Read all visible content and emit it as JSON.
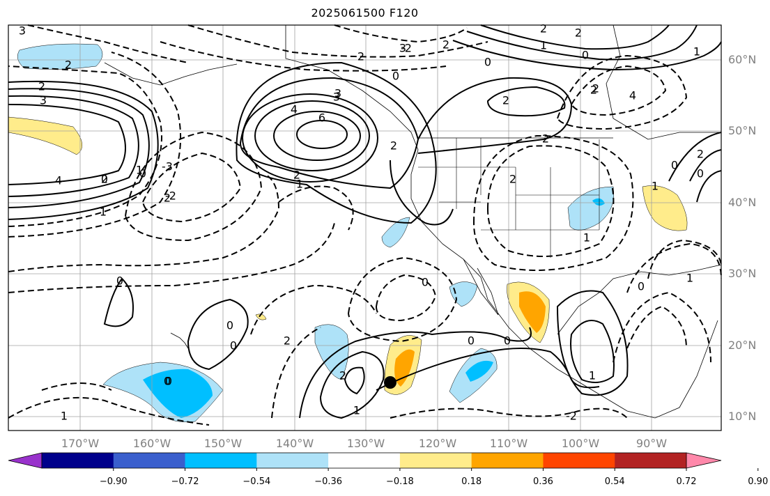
{
  "title": "2025061500 F120",
  "lat_labels": [
    {
      "label": "60°N"
    },
    {
      "label": "50°N"
    },
    {
      "label": "40°N"
    },
    {
      "label": "30°N"
    },
    {
      "label": "20°N"
    },
    {
      "label": "10°N"
    }
  ],
  "lon_labels": [
    {
      "label": "170°W"
    },
    {
      "label": "160°W"
    },
    {
      "label": "150°W"
    },
    {
      "label": "140°W"
    },
    {
      "label": "130°W"
    },
    {
      "label": "120°W"
    },
    {
      "label": "110°W"
    },
    {
      "label": "100°W"
    },
    {
      "label": "90°W"
    }
  ],
  "colorbar": {
    "ticks": [
      "−0.90",
      "−0.72",
      "−0.54",
      "−0.36",
      "−0.18",
      "0.18",
      "0.36",
      "0.54",
      "0.72",
      "0.90"
    ],
    "colors": [
      "#9932cc",
      "#00008b",
      "#3a5fcd",
      "#00bfff",
      "#aee2f8",
      "#ffffff",
      "#ffec8b",
      "#ffa500",
      "#ff4500",
      "#b22222",
      "#ff88aa"
    ]
  },
  "contour_labels": [
    "2",
    "3",
    "4",
    "3",
    "2",
    "0",
    "-2",
    "0",
    "-3",
    "1",
    "2",
    "0",
    "1",
    "2",
    "0",
    "3",
    "6",
    "4",
    "3",
    "2",
    "2",
    "1",
    "2",
    "0",
    "3",
    "2",
    "1",
    "2",
    "0",
    "2",
    "2",
    "4",
    "1",
    "2",
    "2",
    "1",
    "1",
    "0",
    "0",
    "0",
    "2",
    "2",
    "2",
    "1",
    "0",
    "0",
    "0",
    "1",
    "1",
    "0",
    "2",
    "0",
    "0",
    "2",
    "1",
    "0",
    "-2",
    "-2"
  ]
}
